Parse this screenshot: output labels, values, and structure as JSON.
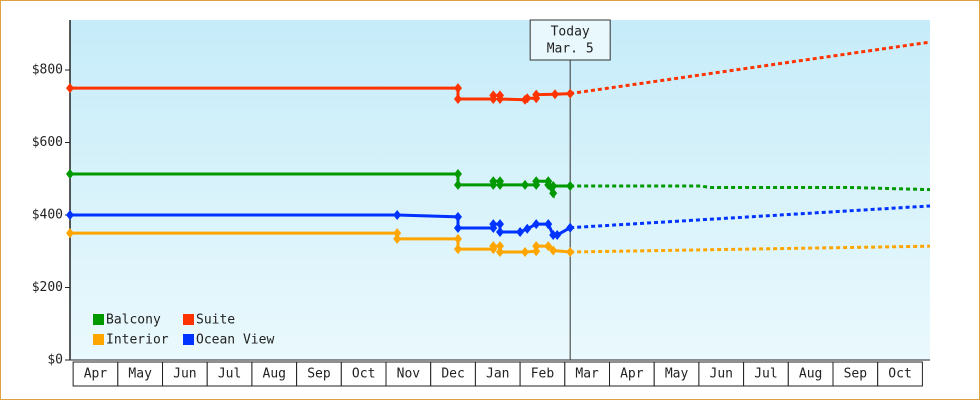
{
  "chart_data": {
    "type": "line",
    "categories": [
      "Apr",
      "May",
      "Jun",
      "Jul",
      "Aug",
      "Sep",
      "Oct",
      "Nov",
      "Dec",
      "Jan",
      "Feb",
      "Mar",
      "Apr",
      "May",
      "Jun",
      "Jul",
      "Aug",
      "Sep",
      "Oct"
    ],
    "xlim": [
      -0.07,
      19.17
    ],
    "ylim": [
      0,
      938
    ],
    "yticks": [
      {
        "value": 0,
        "label": "$0"
      },
      {
        "value": 200,
        "label": "$200"
      },
      {
        "value": 400,
        "label": "$400"
      },
      {
        "value": 600,
        "label": "$600"
      },
      {
        "value": 800,
        "label": "$800"
      }
    ],
    "annotation": {
      "lines": [
        "Today",
        "Mar. 5"
      ],
      "x": 11.12
    },
    "legend": "bottom-left",
    "series": [
      {
        "name": "Balcony",
        "color": "#009900",
        "x": [
          -0.07,
          8.61,
          8.61,
          9.4,
          9.4,
          9.55,
          9.55,
          10.11,
          10.36,
          10.36,
          10.63,
          10.63,
          10.74,
          10.74,
          11.12
        ],
        "values": [
          513,
          513,
          483,
          483,
          493,
          493,
          483,
          483,
          483,
          493,
          493,
          483,
          460,
          480,
          480
        ],
        "forecast_x": [
          11.12,
          14.03,
          14.25,
          17.38,
          19.17
        ],
        "forecast_values": [
          480,
          480,
          476,
          476,
          470
        ]
      },
      {
        "name": "Suite",
        "color": "#ff3300",
        "x": [
          -0.07,
          8.61,
          8.61,
          9.4,
          9.4,
          9.55,
          9.55,
          10.11,
          10.16,
          10.36,
          10.36,
          10.78,
          11.12
        ],
        "values": [
          750,
          750,
          720,
          720,
          730,
          730,
          720,
          718,
          722,
          722,
          732,
          733,
          735
        ],
        "forecast_x": [
          11.12,
          19.17
        ],
        "forecast_values": [
          735,
          877
        ]
      },
      {
        "name": "Interior",
        "color": "#ffa500",
        "x": [
          -0.07,
          7.25,
          7.25,
          8.61,
          8.61,
          9.4,
          9.4,
          9.55,
          9.55,
          10.11,
          10.36,
          10.36,
          10.63,
          10.74,
          11.12
        ],
        "values": [
          350,
          350,
          334,
          334,
          306,
          306,
          314,
          314,
          298,
          298,
          300,
          314,
          314,
          302,
          298
        ],
        "forecast_x": [
          11.12,
          19.17
        ],
        "forecast_values": [
          298,
          314
        ]
      },
      {
        "name": "Ocean View",
        "color": "#0033ff",
        "x": [
          -0.07,
          7.25,
          8.61,
          8.61,
          9.4,
          9.4,
          9.55,
          9.55,
          10.0,
          10.16,
          10.36,
          10.63,
          10.74,
          10.83,
          11.12
        ],
        "values": [
          400,
          400,
          395,
          364,
          364,
          375,
          375,
          353,
          353,
          362,
          375,
          375,
          345,
          345,
          365
        ],
        "forecast_x": [
          11.12,
          19.17
        ],
        "forecast_values": [
          365,
          425
        ]
      }
    ]
  }
}
